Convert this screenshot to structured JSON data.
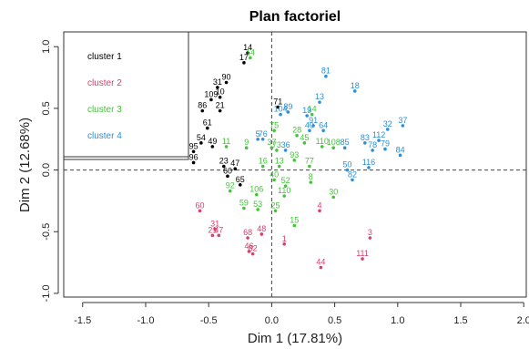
{
  "chart_data": {
    "type": "scatter",
    "title": "Plan factoriel",
    "xlabel": "Dim 1 (17.81%)",
    "ylabel": "Dim 2 (12.68%)",
    "xlim": [
      -1.65,
      2.02
    ],
    "ylim": [
      -1.03,
      1.12
    ],
    "x_ticks": [
      "-1.5",
      "-1.0",
      "-0.5",
      "0.0",
      "0.5",
      "1.0",
      "1.5",
      "2.0"
    ],
    "y_ticks": [
      "-1.0",
      "-0.5",
      "0.0",
      "0.5",
      "1.0"
    ],
    "reference_lines": "dashed at x = 0 and y = 0",
    "legend_position": "top-left",
    "series": [
      {
        "name": "cluster 1",
        "color": "#000000",
        "points": [
          {
            "label": "14",
            "x": -0.19,
            "y": 0.95
          },
          {
            "label": "17",
            "x": -0.22,
            "y": 0.87
          },
          {
            "label": "90",
            "x": -0.36,
            "y": 0.71
          },
          {
            "label": "31",
            "x": -0.43,
            "y": 0.67
          },
          {
            "label": "10",
            "x": -0.41,
            "y": 0.59
          },
          {
            "label": "109",
            "x": -0.48,
            "y": 0.57
          },
          {
            "label": "21",
            "x": -0.41,
            "y": 0.48
          },
          {
            "label": "86",
            "x": -0.55,
            "y": 0.48
          },
          {
            "label": "61",
            "x": -0.51,
            "y": 0.34
          },
          {
            "label": "54",
            "x": -0.56,
            "y": 0.22
          },
          {
            "label": "49",
            "x": -0.47,
            "y": 0.19
          },
          {
            "label": "95",
            "x": -0.62,
            "y": 0.15
          },
          {
            "label": "96",
            "x": -0.62,
            "y": 0.06
          },
          {
            "label": "23",
            "x": -0.38,
            "y": 0.03
          },
          {
            "label": "47",
            "x": -0.29,
            "y": 0.01
          },
          {
            "label": "60",
            "x": -0.35,
            "y": -0.05
          },
          {
            "label": "65",
            "x": -0.25,
            "y": -0.12
          },
          {
            "label": "71",
            "x": 0.05,
            "y": 0.51
          }
        ]
      },
      {
        "name": "cluster 2",
        "color": "#d6416b",
        "points": [
          {
            "label": "60",
            "x": -0.57,
            "y": -0.33
          },
          {
            "label": "31",
            "x": -0.45,
            "y": -0.48
          },
          {
            "label": "21",
            "x": -0.47,
            "y": -0.53
          },
          {
            "label": "47",
            "x": -0.42,
            "y": -0.53
          },
          {
            "label": "48",
            "x": -0.08,
            "y": -0.52
          },
          {
            "label": "68",
            "x": -0.19,
            "y": -0.55
          },
          {
            "label": "1",
            "x": 0.1,
            "y": -0.6
          },
          {
            "label": "46",
            "x": -0.18,
            "y": -0.66
          },
          {
            "label": "82",
            "x": -0.15,
            "y": -0.68
          },
          {
            "label": "4",
            "x": 0.38,
            "y": -0.33
          },
          {
            "label": "3",
            "x": 0.78,
            "y": -0.55
          },
          {
            "label": "111",
            "x": 0.72,
            "y": -0.72
          },
          {
            "label": "44",
            "x": 0.39,
            "y": -0.79
          }
        ]
      },
      {
        "name": "cluster 3",
        "color": "#43c43a",
        "points": [
          {
            "label": "14",
            "x": -0.17,
            "y": 0.91
          },
          {
            "label": "11",
            "x": -0.36,
            "y": 0.19
          },
          {
            "label": "9",
            "x": -0.2,
            "y": 0.18
          },
          {
            "label": "75",
            "x": 0.02,
            "y": 0.32
          },
          {
            "label": "28",
            "x": 0.2,
            "y": 0.28
          },
          {
            "label": "14",
            "x": 0.32,
            "y": 0.45
          },
          {
            "label": "45",
            "x": 0.26,
            "y": 0.22
          },
          {
            "label": "37",
            "x": 0.0,
            "y": 0.18
          },
          {
            "label": "73",
            "x": 0.04,
            "y": 0.16
          },
          {
            "label": "16",
            "x": -0.07,
            "y": 0.03
          },
          {
            "label": "13",
            "x": 0.06,
            "y": 0.03
          },
          {
            "label": "93",
            "x": 0.18,
            "y": 0.08
          },
          {
            "label": "77",
            "x": 0.3,
            "y": 0.03
          },
          {
            "label": "110",
            "x": 0.4,
            "y": 0.19
          },
          {
            "label": "108",
            "x": 0.49,
            "y": 0.18
          },
          {
            "label": "8",
            "x": 0.31,
            "y": -0.1
          },
          {
            "label": "92",
            "x": -0.33,
            "y": -0.17
          },
          {
            "label": "106",
            "x": -0.12,
            "y": -0.2
          },
          {
            "label": "110",
            "x": 0.1,
            "y": -0.21
          },
          {
            "label": "30",
            "x": 0.49,
            "y": -0.22
          },
          {
            "label": "59",
            "x": -0.22,
            "y": -0.31
          },
          {
            "label": "53",
            "x": -0.11,
            "y": -0.32
          },
          {
            "label": "15",
            "x": 0.18,
            "y": -0.45
          },
          {
            "label": "40",
            "x": 0.02,
            "y": -0.08
          },
          {
            "label": "52",
            "x": 0.11,
            "y": -0.13
          },
          {
            "label": "25",
            "x": 0.03,
            "y": -0.33
          }
        ]
      },
      {
        "name": "cluster 4",
        "color": "#2d8fd8",
        "points": [
          {
            "label": "81",
            "x": 0.43,
            "y": 0.76
          },
          {
            "label": "18",
            "x": 0.66,
            "y": 0.64
          },
          {
            "label": "13",
            "x": 0.38,
            "y": 0.55
          },
          {
            "label": "89",
            "x": 0.13,
            "y": 0.47
          },
          {
            "label": "104",
            "x": 0.07,
            "y": 0.45
          },
          {
            "label": "19",
            "x": 0.28,
            "y": 0.44
          },
          {
            "label": "5",
            "x": -0.11,
            "y": 0.25
          },
          {
            "label": "76",
            "x": -0.07,
            "y": 0.25
          },
          {
            "label": "36",
            "x": 0.11,
            "y": 0.16
          },
          {
            "label": "40",
            "x": 0.3,
            "y": 0.32
          },
          {
            "label": "64",
            "x": 0.41,
            "y": 0.32
          },
          {
            "label": "91",
            "x": 0.33,
            "y": 0.36
          },
          {
            "label": "85",
            "x": 0.58,
            "y": 0.18
          },
          {
            "label": "32",
            "x": 0.92,
            "y": 0.33
          },
          {
            "label": "37",
            "x": 1.04,
            "y": 0.36
          },
          {
            "label": "83",
            "x": 0.74,
            "y": 0.22
          },
          {
            "label": "112",
            "x": 0.85,
            "y": 0.24
          },
          {
            "label": "78",
            "x": 0.8,
            "y": 0.16
          },
          {
            "label": "79",
            "x": 0.9,
            "y": 0.17
          },
          {
            "label": "84",
            "x": 1.02,
            "y": 0.12
          },
          {
            "label": "50",
            "x": 0.6,
            "y": 0.0
          },
          {
            "label": "116",
            "x": 0.77,
            "y": 0.02
          },
          {
            "label": "82",
            "x": 0.64,
            "y": -0.08
          }
        ]
      }
    ]
  }
}
